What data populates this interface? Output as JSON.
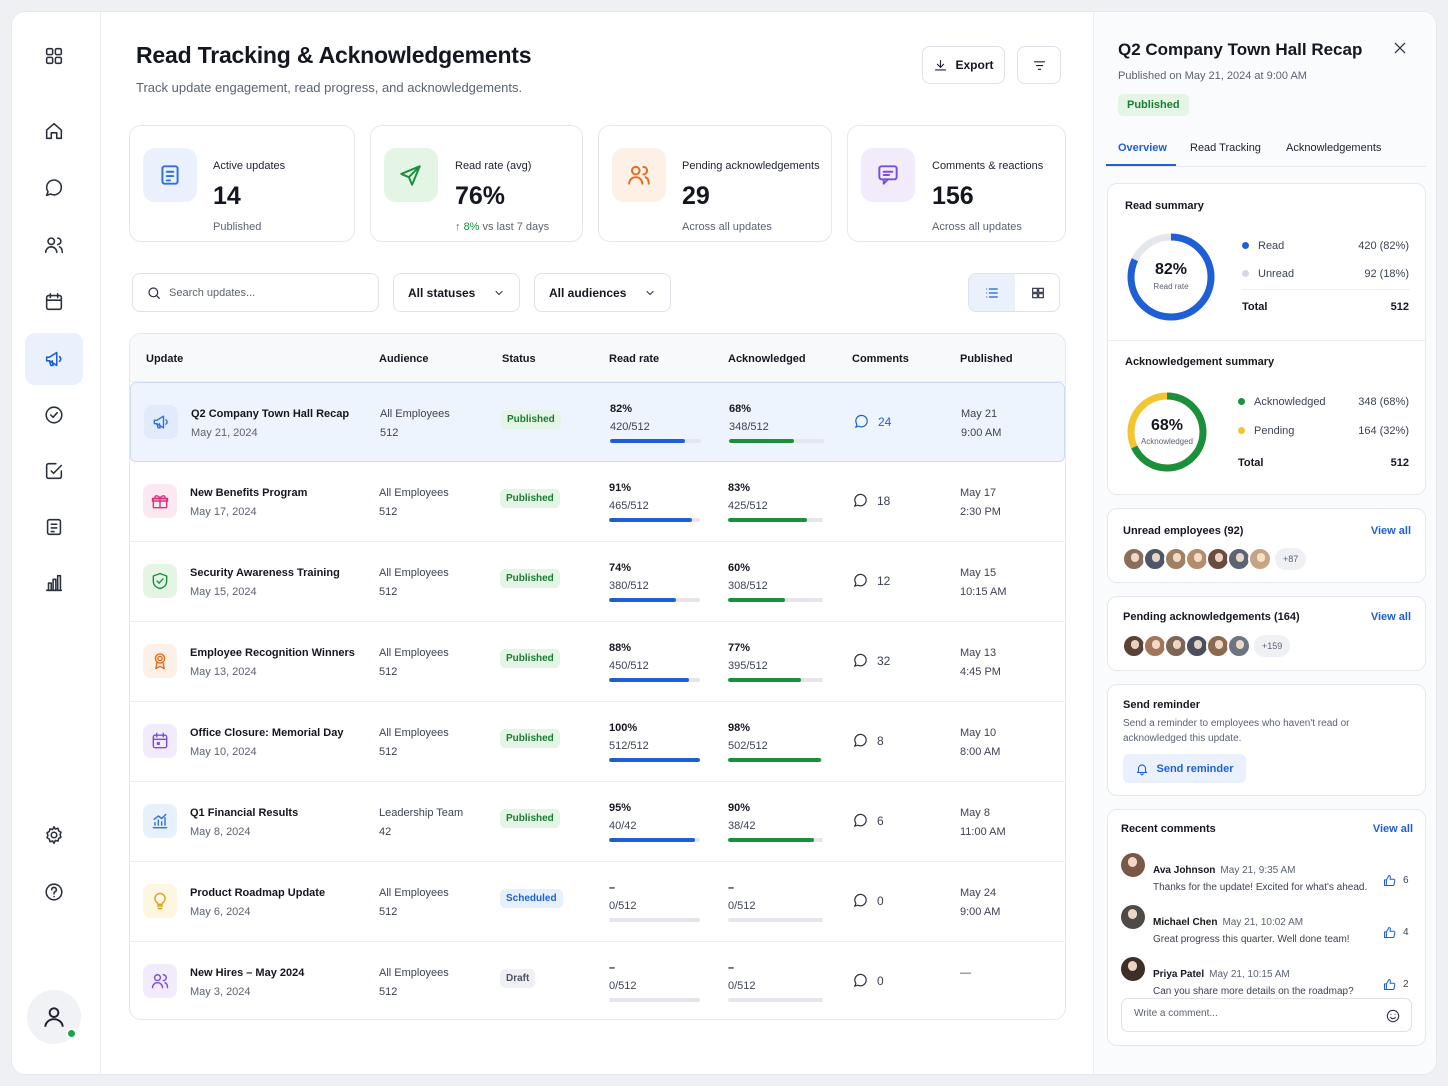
{
  "header": {
    "title": "Read Tracking & Acknowledgements",
    "subtitle": "Track update engagement, read progress, and acknowledgements.",
    "export_label": "Export"
  },
  "stats": [
    {
      "label": "Active updates",
      "value": "14",
      "foot": "Published",
      "icon": "document-icon",
      "color": "#2f6fe0",
      "bg": "#eaf1fd"
    },
    {
      "label": "Read rate (avg)",
      "value": "76%",
      "foot_up": "8%",
      "foot": " vs last 7 days",
      "icon": "send-icon",
      "color": "#1a8f3c",
      "bg": "#e4f5e6"
    },
    {
      "label": "Pending acknowledgements",
      "value": "29",
      "foot": "Across all updates",
      "icon": "users-icon",
      "color": "#ea6a1f",
      "bg": "#fdf0e6"
    },
    {
      "label": "Comments & reactions",
      "value": "156",
      "foot": "Across all updates",
      "icon": "chat-icon",
      "color": "#7a4fd6",
      "bg": "#f1ebfc"
    }
  ],
  "filters": {
    "search_placeholder": "Search updates...",
    "status": "All statuses",
    "audience": "All audiences"
  },
  "table": {
    "columns": [
      "Update",
      "Audience",
      "Status",
      "Read rate",
      "Acknowledged",
      "Comments",
      "Published"
    ],
    "rows": [
      {
        "title": "Q2 Company Town Hall Recap",
        "date": "May 21, 2024",
        "aud": "All Employees",
        "aud_n": "512",
        "status": "Published",
        "read_pct": "82%",
        "read_cnt": "420/512",
        "read_v": 0.82,
        "ack_pct": "68%",
        "ack_cnt": "348/512",
        "ack_v": 0.68,
        "comments": "24",
        "pub1": "May 21",
        "pub2": "9:00 AM",
        "icon": "megaphone-icon",
        "color": "#2f6fe0",
        "bg": "#e2ebfb"
      },
      {
        "title": "New Benefits Program",
        "date": "May 17, 2024",
        "aud": "All Employees",
        "aud_n": "512",
        "status": "Published",
        "read_pct": "91%",
        "read_cnt": "465/512",
        "read_v": 0.91,
        "ack_pct": "83%",
        "ack_cnt": "425/512",
        "ack_v": 0.83,
        "comments": "18",
        "pub1": "May 17",
        "pub2": "2:30 PM",
        "icon": "gift-icon",
        "color": "#d6337a",
        "bg": "#fce8f1"
      },
      {
        "title": "Security Awareness Training",
        "date": "May 15, 2024",
        "aud": "All Employees",
        "aud_n": "512",
        "status": "Published",
        "read_pct": "74%",
        "read_cnt": "380/512",
        "read_v": 0.74,
        "ack_pct": "60%",
        "ack_cnt": "308/512",
        "ack_v": 0.6,
        "comments": "12",
        "pub1": "May 15",
        "pub2": "10:15 AM",
        "icon": "shield-icon",
        "color": "#1a8f3c",
        "bg": "#e4f5e6"
      },
      {
        "title": "Employee Recognition Winners",
        "date": "May 13, 2024",
        "aud": "All Employees",
        "aud_n": "512",
        "status": "Published",
        "read_pct": "88%",
        "read_cnt": "450/512",
        "read_v": 0.88,
        "ack_pct": "77%",
        "ack_cnt": "395/512",
        "ack_v": 0.77,
        "comments": "32",
        "pub1": "May 13",
        "pub2": "4:45 PM",
        "icon": "award-icon",
        "color": "#ea6a1f",
        "bg": "#fdf0e6"
      },
      {
        "title": "Office Closure: Memorial Day",
        "date": "May 10, 2024",
        "aud": "All Employees",
        "aud_n": "512",
        "status": "Published",
        "read_pct": "100%",
        "read_cnt": "512/512",
        "read_v": 1.0,
        "ack_pct": "98%",
        "ack_cnt": "502/512",
        "ack_v": 0.98,
        "comments": "8",
        "pub1": "May 10",
        "pub2": "8:00 AM",
        "icon": "calendar-icon",
        "color": "#7a4fd6",
        "bg": "#f1ebfc"
      },
      {
        "title": "Q1 Financial Results",
        "date": "May 8, 2024",
        "aud": "Leadership Team",
        "aud_n": "42",
        "status": "Published",
        "read_pct": "95%",
        "read_cnt": "40/42",
        "read_v": 0.95,
        "ack_pct": "90%",
        "ack_cnt": "38/42",
        "ack_v": 0.9,
        "comments": "6",
        "pub1": "May 8",
        "pub2": "11:00 AM",
        "icon": "chart-icon",
        "color": "#2f6fe0",
        "bg": "#e6f1fb"
      },
      {
        "title": "Product Roadmap Update",
        "date": "May 6, 2024",
        "aud": "All Employees",
        "aud_n": "512",
        "status": "Scheduled",
        "read_pct": "–",
        "read_cnt": "0/512",
        "read_v": 0,
        "ack_pct": "–",
        "ack_cnt": "0/512",
        "ack_v": 0,
        "comments": "0",
        "pub1": "May 24",
        "pub2": "9:00 AM",
        "icon": "bulb-icon",
        "color": "#d6a01a",
        "bg": "#fdf6e0"
      },
      {
        "title": "New Hires – May 2024",
        "date": "May 3, 2024",
        "aud": "All Employees",
        "aud_n": "512",
        "status": "Draft",
        "read_pct": "–",
        "read_cnt": "0/512",
        "read_v": 0,
        "ack_pct": "–",
        "ack_cnt": "0/512",
        "ack_v": 0,
        "comments": "0",
        "pub1": "—",
        "pub2": "",
        "icon": "users-icon",
        "color": "#7a4fd6",
        "bg": "#f1ebfc"
      }
    ]
  },
  "panel": {
    "title": "Q2 Company Town Hall Recap",
    "subtitle": "Published on May 21, 2024 at 9:00 AM",
    "badge": "Published",
    "tabs": [
      "Overview",
      "Read Tracking",
      "Acknowledgements"
    ],
    "read_summary": {
      "title": "Read summary",
      "center": "82%",
      "center_label": "Read rate",
      "value": 0.82,
      "legend": [
        {
          "label": "Read",
          "value": "420 (82%)",
          "color": "#1f5fd6"
        },
        {
          "label": "Unread",
          "value": "92 (18%)",
          "color": "#d4d8e0"
        }
      ],
      "total_label": "Total",
      "total": "512"
    },
    "ack_summary": {
      "title": "Acknowledgement summary",
      "center": "68%",
      "center_label": "Acknowledged",
      "value": 0.68,
      "legend": [
        {
          "label": "Acknowledged",
          "value": "348 (68%)",
          "color": "#1a8f3c"
        },
        {
          "label": "Pending",
          "value": "164 (32%)",
          "color": "#f2c531"
        }
      ],
      "total_label": "Total",
      "total": "512"
    },
    "unread": {
      "title": "Unread employees (92)",
      "view_all": "View all",
      "more": "+87",
      "colors": [
        "#8a6e5c",
        "#4e5668",
        "#a07f62",
        "#b58d6e",
        "#6b4d3e",
        "#5c6473",
        "#c8a487"
      ]
    },
    "pending": {
      "title": "Pending acknowledgements (164)",
      "view_all": "View all",
      "more": "+159",
      "colors": [
        "#5a4236",
        "#a3765c",
        "#7d6658",
        "#4a4f5c",
        "#8c6a52",
        "#6d7482"
      ]
    },
    "reminder": {
      "title": "Send reminder",
      "text": "Send a reminder to employees who haven't read or acknowledged this update.",
      "button": "Send reminder"
    },
    "comments": {
      "title": "Recent comments",
      "view_all": "View all",
      "items": [
        {
          "name": "Ava Johnson",
          "time": "May 21, 9:35 AM",
          "text": "Thanks for the update! Excited for what's ahead.",
          "likes": "6",
          "color": "#7a5848"
        },
        {
          "name": "Michael Chen",
          "time": "May 21, 10:02 AM",
          "text": "Great progress this quarter. Well done team!",
          "likes": "4",
          "color": "#4e4a48"
        },
        {
          "name": "Priya Patel",
          "time": "May 21, 10:15 AM",
          "text": "Can you share more details on the roadmap?",
          "likes": "2",
          "color": "#3e2e28"
        }
      ],
      "placeholder": "Write a comment..."
    }
  }
}
